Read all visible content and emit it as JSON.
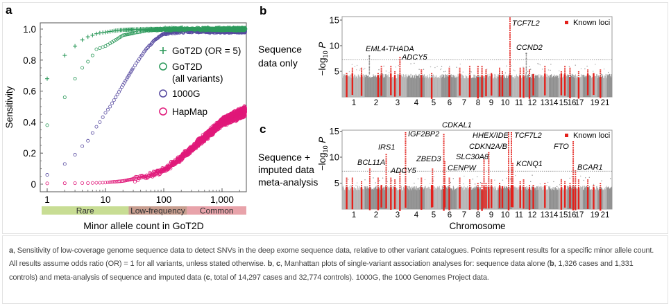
{
  "chart_data": [
    {
      "panel": "a",
      "type": "scatter",
      "ylabel": "Sensitivity",
      "xlabel": "Minor allele count in GoT2D",
      "xscale": "log",
      "xlim": [
        0.8,
        3000
      ],
      "ylim": [
        -0.05,
        1.05
      ],
      "xticks": [
        "1",
        "10",
        "100",
        "1,000"
      ],
      "xtick_values": [
        1,
        10,
        100,
        1000
      ],
      "yticks": [
        "0",
        "0.2",
        "0.4",
        "0.6",
        "0.8",
        "1.0"
      ],
      "ytick_values": [
        0,
        0.2,
        0.4,
        0.6,
        0.8,
        1.0
      ],
      "frequency_bands": [
        {
          "label": "Rare",
          "from": 0.8,
          "to": 25,
          "color": "#c8dd94"
        },
        {
          "label": "Low-frequency",
          "from": 25,
          "to": 250,
          "color": "#c89e8f"
        },
        {
          "label": "Common",
          "from": 250,
          "to": 3000,
          "color": "#e8a3aa"
        }
      ],
      "series": [
        {
          "name": "GoT2D (OR = 5)",
          "marker": "plus",
          "color": "#2e9a5c",
          "x": [
            1,
            2,
            3,
            4,
            5,
            6,
            7,
            8,
            10,
            15,
            20,
            50,
            100,
            2500
          ],
          "y": [
            0.68,
            0.83,
            0.89,
            0.93,
            0.95,
            0.96,
            0.97,
            0.975,
            0.98,
            0.99,
            0.995,
            1.0,
            1.0,
            1.0
          ]
        },
        {
          "name_lines": [
            "GoT2D",
            "(all variants)"
          ],
          "marker": "circle",
          "color": "#2e9a5c",
          "x": [
            1,
            2,
            3,
            4,
            5,
            6,
            7,
            10,
            15,
            20,
            50,
            200,
            2500
          ],
          "y": [
            0.38,
            0.56,
            0.68,
            0.75,
            0.79,
            0.83,
            0.87,
            0.89,
            0.93,
            0.96,
            0.99,
            1.0,
            1.0
          ]
        },
        {
          "name": "1000G",
          "marker": "circle",
          "color": "#574aa0",
          "x": [
            1,
            2,
            3,
            4,
            5,
            6,
            7,
            8,
            10,
            12,
            15,
            20,
            25,
            30,
            40,
            50,
            70,
            100,
            200,
            2500
          ],
          "y": [
            0.06,
            0.13,
            0.19,
            0.245,
            0.28,
            0.33,
            0.37,
            0.4,
            0.46,
            0.5,
            0.56,
            0.64,
            0.7,
            0.75,
            0.82,
            0.87,
            0.93,
            0.97,
            0.985,
            0.985
          ]
        },
        {
          "name": "HapMap",
          "marker": "circle",
          "color": "#e0197a",
          "x": [
            1,
            5,
            10,
            20,
            50,
            100,
            200,
            500,
            1000,
            2500
          ],
          "y": [
            0.005,
            0.007,
            0.01,
            0.02,
            0.05,
            0.09,
            0.17,
            0.3,
            0.4,
            0.47
          ]
        }
      ]
    },
    {
      "panel": "b",
      "type": "scatter",
      "row_label": [
        "Sequence",
        "data only"
      ],
      "ylabel": "−log10 P",
      "ylim": [
        0,
        16
      ],
      "yticks": [
        "5",
        "10",
        "15"
      ],
      "ytick_values": [
        5,
        10,
        15
      ],
      "threshold": 7.3,
      "legend": "Known loci",
      "xticks": [
        "1",
        "2",
        "3",
        "4",
        "5",
        "6",
        "7",
        "8",
        "9",
        "10",
        "11",
        "12",
        "13",
        "14",
        "15",
        "16",
        "17",
        "19",
        "21"
      ],
      "xtick_chromosomes": [
        1,
        2,
        3,
        4,
        5,
        6,
        7,
        8,
        9,
        10,
        11,
        12,
        13,
        14,
        15,
        16,
        17,
        19,
        21
      ],
      "peaks": [
        {
          "label": "EML4-THADA",
          "chr": 2,
          "pos": 0.2,
          "value": 8.0,
          "known": false
        },
        {
          "label": "ADCY5",
          "chr": 3,
          "pos": 0.65,
          "value": 8.0,
          "known": true
        },
        {
          "label": "TCF7L2",
          "chr": 10,
          "pos": 0.85,
          "value": 15.5,
          "known": true
        },
        {
          "label": "CCND2",
          "chr": 12,
          "pos": 0.05,
          "value": 8.5,
          "known": false
        }
      ]
    },
    {
      "panel": "c",
      "type": "scatter",
      "row_label": [
        "Sequence +",
        "imputed data",
        "meta-analysis"
      ],
      "ylabel": "−log10 P",
      "xlabel": "Chromosome",
      "ylim": [
        0,
        16
      ],
      "yticks": [
        "5",
        "10",
        "15"
      ],
      "ytick_values": [
        5,
        10,
        15
      ],
      "threshold": 7.3,
      "legend": "Known loci",
      "xticks": [
        "1",
        "2",
        "3",
        "4",
        "5",
        "6",
        "7",
        "8",
        "9",
        "10",
        "11",
        "12",
        "13",
        "14",
        "15",
        "16",
        "17",
        "19",
        "21"
      ],
      "xtick_chromosomes": [
        1,
        2,
        3,
        4,
        5,
        6,
        7,
        8,
        9,
        10,
        11,
        12,
        13,
        14,
        15,
        16,
        17,
        19,
        21
      ],
      "peaks": [
        {
          "label": "BCL11A",
          "chr": 2,
          "pos": 0.22,
          "value": 8.0,
          "known": true
        },
        {
          "label": "IRS1",
          "chr": 2,
          "pos": 0.97,
          "value": 10.8,
          "known": true
        },
        {
          "label": "ADCY5",
          "chr": 3,
          "pos": 0.65,
          "value": 7.2,
          "known": true
        },
        {
          "label": "IGF2BP2",
          "chr": 3,
          "pos": 0.93,
          "value": 15.0,
          "known": true
        },
        {
          "label": "ZBED3",
          "chr": 5,
          "pos": 0.45,
          "value": 8.0,
          "known": true
        },
        {
          "label": "CDKAL1",
          "chr": 6,
          "pos": 0.14,
          "value": 14.5,
          "known": true
        },
        {
          "label": "CENPW",
          "chr": 6,
          "pos": 0.2,
          "value": 9.3,
          "known": true
        },
        {
          "label": "SLC30A8",
          "chr": 8,
          "pos": 0.95,
          "value": 9.5,
          "known": true
        },
        {
          "label": "CDKN2A/B",
          "chr": 9,
          "pos": 0.3,
          "value": 11.0,
          "known": true
        },
        {
          "label": "HHEX/IDE",
          "chr": 10,
          "pos": 0.75,
          "value": 15.0,
          "known": true
        },
        {
          "label": "TCF7L2",
          "chr": 10,
          "pos": 0.95,
          "value": 15.0,
          "known": true
        },
        {
          "label": "KCNQ1",
          "chr": 11,
          "pos": 0.05,
          "value": 9.0,
          "known": true
        },
        {
          "label": "FTO",
          "chr": 16,
          "pos": 0.7,
          "value": 13.0,
          "known": true
        },
        {
          "label": "BCAR1",
          "chr": 16,
          "pos": 0.98,
          "value": 7.5,
          "known": true
        }
      ],
      "known_loci": [
        {
          "chr": 1,
          "pos": 0.2
        },
        {
          "chr": 1,
          "pos": 0.45
        },
        {
          "chr": 1,
          "pos": 0.85
        },
        {
          "chr": 2,
          "pos": 0.6
        },
        {
          "chr": 2,
          "pos": 0.75
        },
        {
          "chr": 3,
          "pos": 0.2
        },
        {
          "chr": 3,
          "pos": 0.4
        },
        {
          "chr": 4,
          "pos": 0.8
        },
        {
          "chr": 5,
          "pos": 0.4
        },
        {
          "chr": 6,
          "pos": 0.5
        },
        {
          "chr": 7,
          "pos": 0.2
        },
        {
          "chr": 7,
          "pos": 0.9
        },
        {
          "chr": 8,
          "pos": 0.5
        },
        {
          "chr": 8,
          "pos": 0.8
        },
        {
          "chr": 9,
          "pos": 0.1
        },
        {
          "chr": 9,
          "pos": 0.5
        },
        {
          "chr": 10,
          "pos": 0.1
        },
        {
          "chr": 10,
          "pos": 0.3
        },
        {
          "chr": 11,
          "pos": 0.6
        },
        {
          "chr": 11,
          "pos": 0.85
        },
        {
          "chr": 12,
          "pos": 0.3
        },
        {
          "chr": 12,
          "pos": 0.6
        },
        {
          "chr": 13,
          "pos": 0.6
        },
        {
          "chr": 15,
          "pos": 0.3
        },
        {
          "chr": 15,
          "pos": 0.7
        },
        {
          "chr": 16,
          "pos": 0.3
        },
        {
          "chr": 17,
          "pos": 0.4
        },
        {
          "chr": 18,
          "pos": 0.6
        },
        {
          "chr": 19,
          "pos": 0.4
        },
        {
          "chr": 20,
          "pos": 0.5
        }
      ]
    }
  ],
  "panel_letters": {
    "a": "a",
    "b": "b",
    "c": "c"
  },
  "colors": {
    "green": "#2e9a5c",
    "purple": "#574aa0",
    "pink": "#e0197a",
    "known_red": "#e3201b",
    "gray_light": "#b4b4b4",
    "gray_dark": "#8e8e8e"
  },
  "caption": {
    "parts": [
      {
        "text": "a",
        "bold": true
      },
      {
        "text": ", Sensitivity of low-coverage genome sequence data to detect SNVs in the deep exome sequence data, relative to other variant catalogues. Points represent results for a specific minor allele count. All results assume odds ratio (OR) = 1 for all variants, unless stated otherwise. ",
        "bold": false
      },
      {
        "text": "b",
        "bold": true
      },
      {
        "text": ", ",
        "bold": false
      },
      {
        "text": "c",
        "bold": true
      },
      {
        "text": ", Manhattan plots of single-variant association analyses for: sequence data alone (",
        "bold": false
      },
      {
        "text": "b",
        "bold": true
      },
      {
        "text": ", 1,326 cases and 1,331 controls) and meta-analysis of sequence and imputed data (",
        "bold": false
      },
      {
        "text": "c",
        "bold": true
      },
      {
        "text": ", total of 14,297 cases and 32,774 controls). 1000G, the 1000 Genomes Project data.",
        "bold": false
      }
    ]
  }
}
